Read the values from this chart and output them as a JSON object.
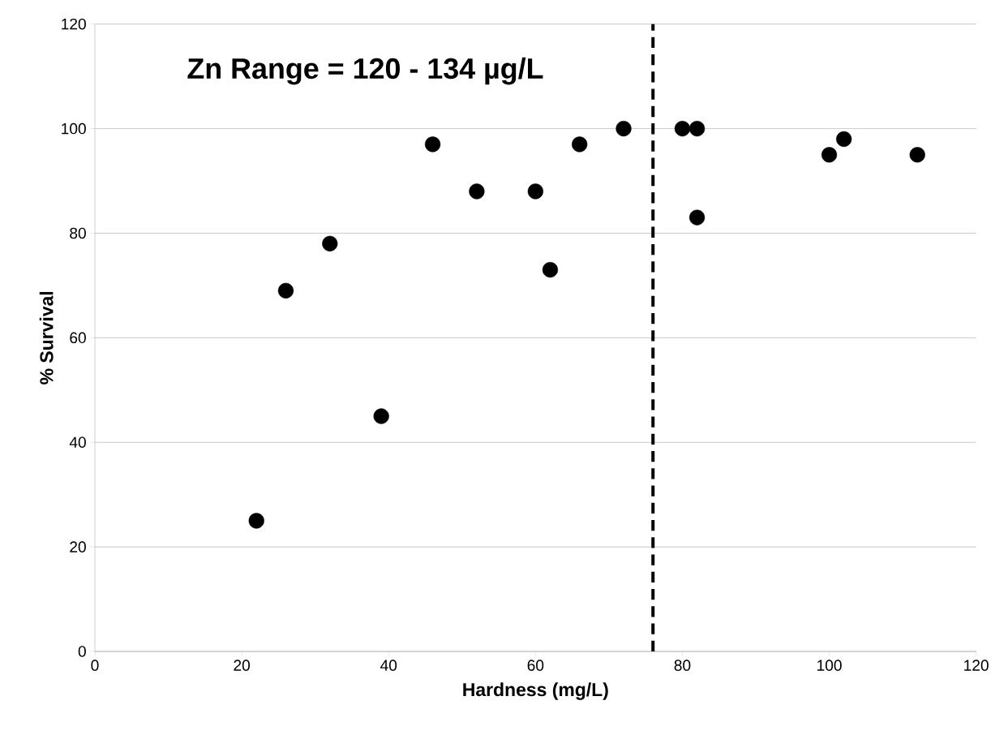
{
  "chart_data": {
    "type": "scatter",
    "xlabel": "Hardness (mg/L)",
    "ylabel": "% Survival",
    "annotations": [
      "Zn Range = 120 - 134 µg/L"
    ],
    "x": [
      22,
      26,
      32,
      39,
      46,
      52,
      60,
      62,
      66,
      72,
      80,
      82,
      82,
      100,
      102,
      112
    ],
    "series": [
      {
        "color": "#000000",
        "values": [
          25,
          69,
          78,
          45,
          97,
          88,
          88,
          73,
          97,
          100,
          100,
          100,
          83,
          95,
          98,
          95
        ]
      }
    ],
    "xlim": [
      0,
      120
    ],
    "ylim": [
      0,
      120
    ],
    "xticks": [
      0,
      20,
      40,
      60,
      80,
      100,
      120
    ],
    "yticks": [
      0,
      20,
      40,
      60,
      80,
      100,
      120
    ],
    "grid": "y",
    "marker": "circle",
    "ref_lines": [
      {
        "axis": "x",
        "value": 76,
        "color": "#000000",
        "line_style": "dashed"
      }
    ]
  }
}
